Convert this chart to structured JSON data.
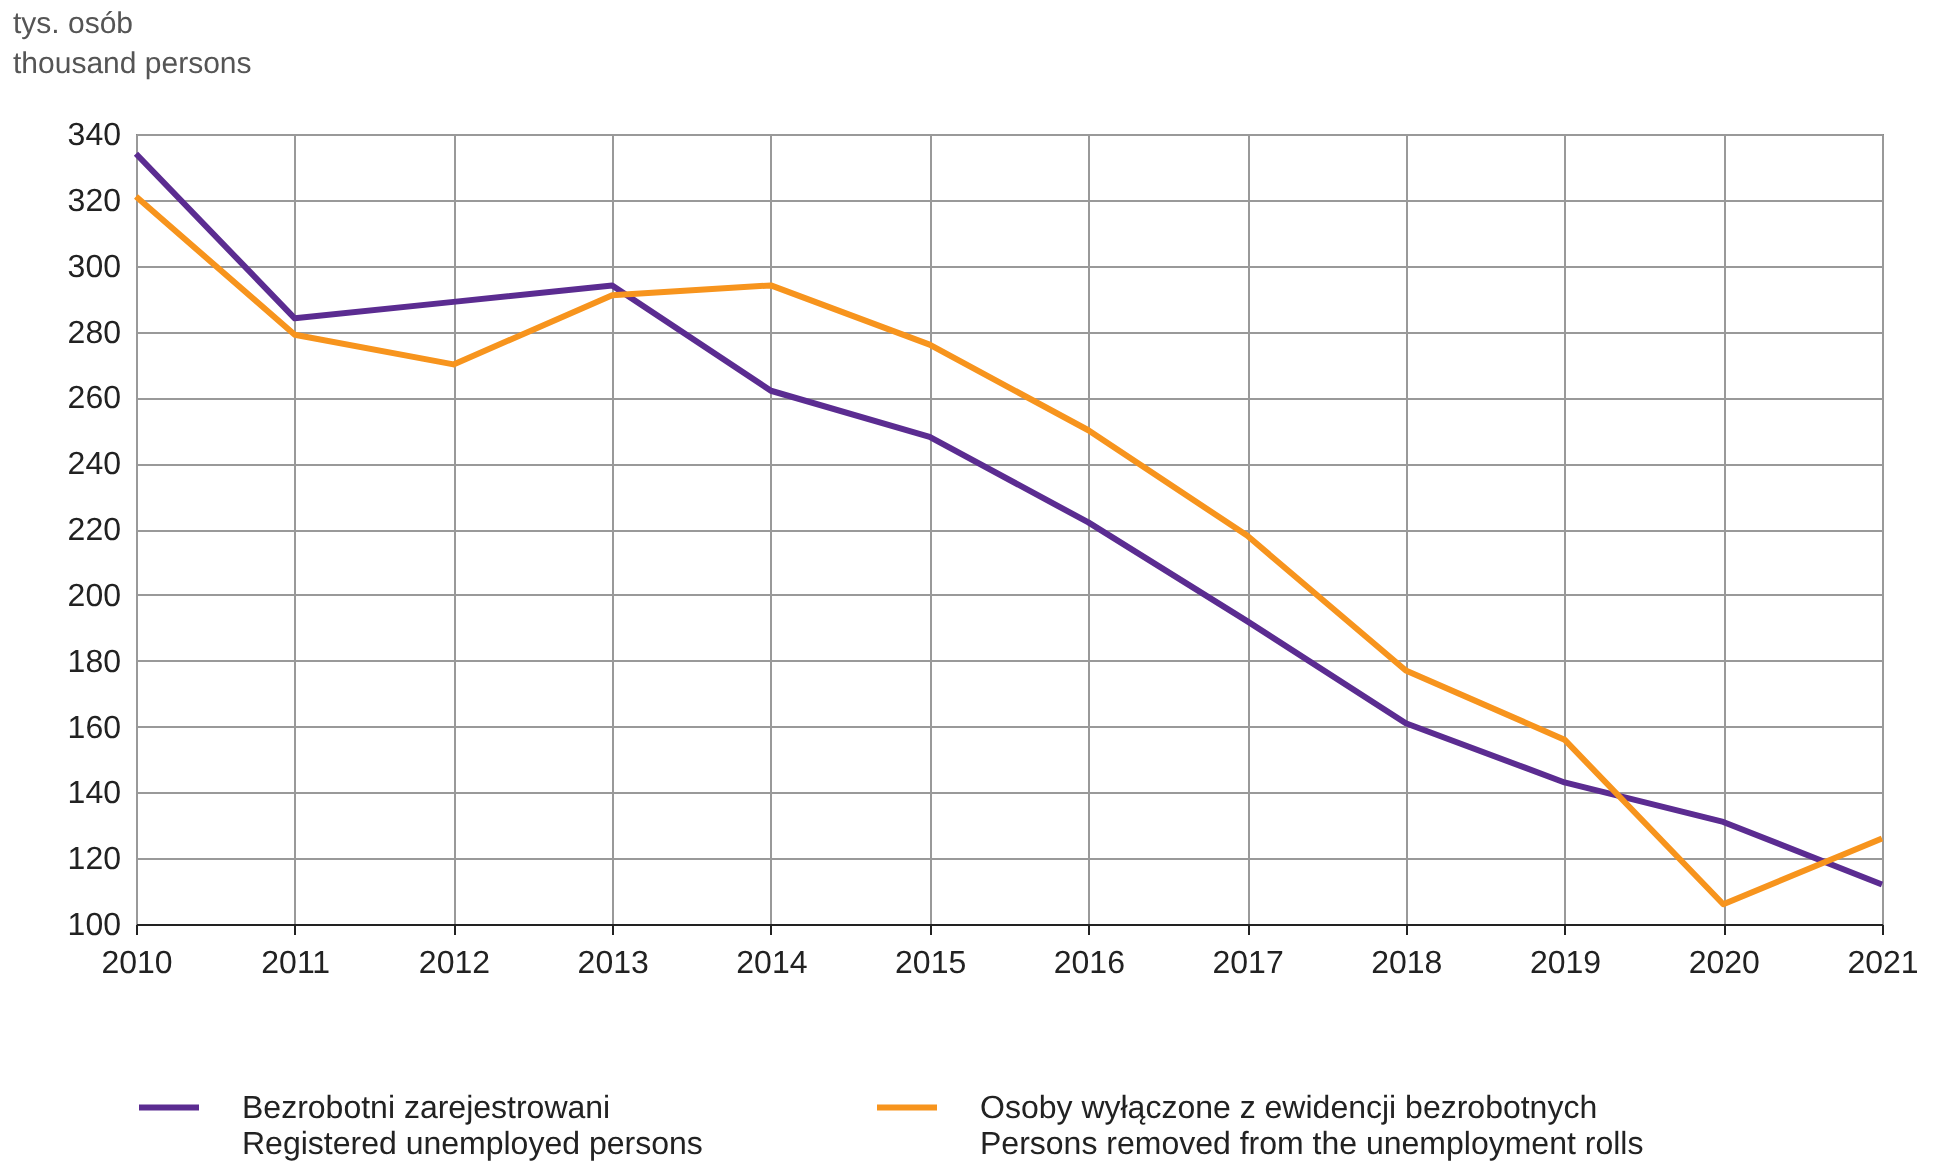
{
  "chart_data": {
    "type": "line",
    "ylabel": "tys. osób\nthousand persons",
    "categories": [
      "2010",
      "2011",
      "2012",
      "2013",
      "2014",
      "2015",
      "2016",
      "2017",
      "2018",
      "2019",
      "2020",
      "2021"
    ],
    "series": [
      {
        "name": "Bezrobotni zarejestrowani\nRegistered unemployed persons",
        "color": "#5b2c91",
        "values": [
          334,
          284,
          289,
          294,
          262,
          248,
          222,
          192,
          161,
          143,
          131,
          112
        ]
      },
      {
        "name": "Osoby wyłączone z ewidencji bezrobotnych\nPersons removed from the unemployment rolls",
        "color": "#f7941d",
        "values": [
          321,
          279,
          270,
          291,
          294,
          276,
          250,
          218,
          177,
          156,
          106,
          126
        ]
      }
    ],
    "ylim": [
      100,
      340
    ],
    "yticks": [
      100,
      120,
      140,
      160,
      180,
      200,
      220,
      240,
      260,
      280,
      300,
      320,
      340
    ],
    "grid": true,
    "legend": "bottom",
    "line_style": "solid",
    "marker": "none"
  }
}
